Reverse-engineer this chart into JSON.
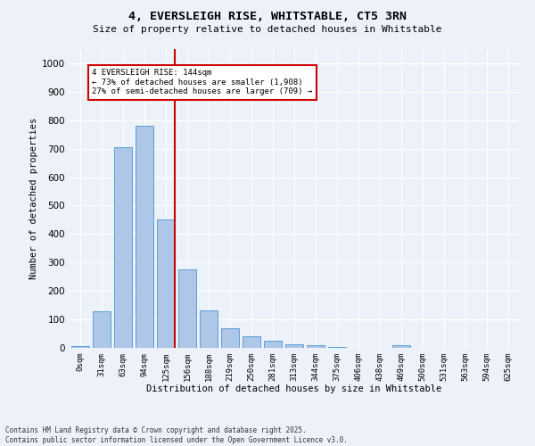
{
  "title_line1": "4, EVERSLEIGH RISE, WHITSTABLE, CT5 3RN",
  "title_line2": "Size of property relative to detached houses in Whitstable",
  "xlabel": "Distribution of detached houses by size in Whitstable",
  "ylabel": "Number of detached properties",
  "bar_labels": [
    "0sqm",
    "31sqm",
    "63sqm",
    "94sqm",
    "125sqm",
    "156sqm",
    "188sqm",
    "219sqm",
    "250sqm",
    "281sqm",
    "313sqm",
    "344sqm",
    "375sqm",
    "406sqm",
    "438sqm",
    "469sqm",
    "500sqm",
    "531sqm",
    "563sqm",
    "594sqm",
    "625sqm"
  ],
  "bar_values": [
    5,
    130,
    705,
    780,
    450,
    275,
    132,
    70,
    40,
    25,
    12,
    10,
    2,
    0,
    0,
    8,
    0,
    0,
    0,
    0,
    0
  ],
  "bar_color": "#aec6e8",
  "bar_edge_color": "#5a9fd4",
  "property_line_x": 4,
  "annotation_text": "4 EVERSLEIGH RISE: 144sqm\n← 73% of detached houses are smaller (1,908)\n27% of semi-detached houses are larger (709) →",
  "annotation_box_color": "#ffffff",
  "annotation_box_edge_color": "#cc0000",
  "vline_color": "#cc0000",
  "ylim": [
    0,
    1050
  ],
  "yticks": [
    0,
    100,
    200,
    300,
    400,
    500,
    600,
    700,
    800,
    900,
    1000
  ],
  "bg_color": "#edf2fa",
  "grid_color": "#ffffff",
  "footer_line1": "Contains HM Land Registry data © Crown copyright and database right 2025.",
  "footer_line2": "Contains public sector information licensed under the Open Government Licence v3.0."
}
